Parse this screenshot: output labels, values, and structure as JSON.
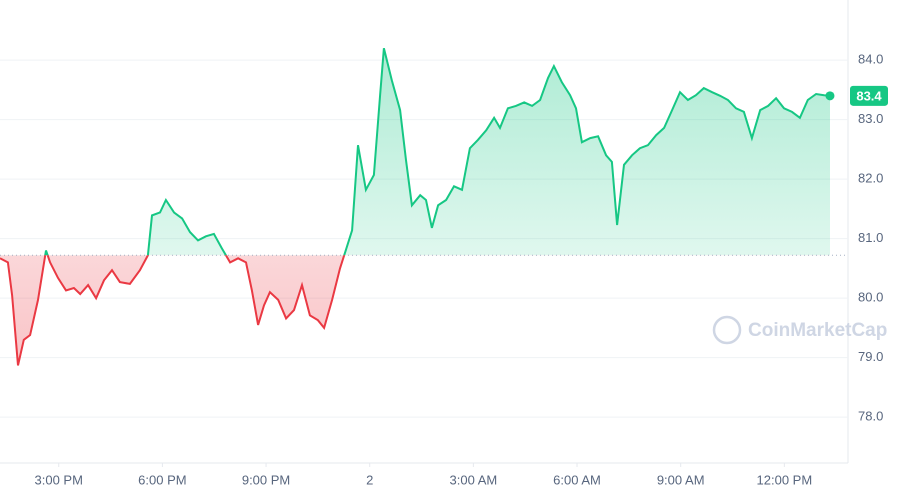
{
  "chart_data": {
    "type": "line",
    "baseline": 80.72,
    "watermark": "CoinMarketCap",
    "last_value_label": "83.4",
    "xlim": [
      13.3,
      37.9
    ],
    "xticks": [
      {
        "value": 15,
        "label": "3:00 PM"
      },
      {
        "value": 18,
        "label": "6:00 PM"
      },
      {
        "value": 21,
        "label": "9:00 PM"
      },
      {
        "value": 24,
        "label": "2"
      },
      {
        "value": 27,
        "label": "3:00 AM"
      },
      {
        "value": 30,
        "label": "6:00 AM"
      },
      {
        "value": 33,
        "label": "9:00 AM"
      },
      {
        "value": 36,
        "label": "12:00 PM"
      }
    ],
    "ylim": [
      77.23,
      85.01
    ],
    "yticks": [
      {
        "value": 78,
        "label": "78.0"
      },
      {
        "value": 79,
        "label": "79.0"
      },
      {
        "value": 80,
        "label": "80.0"
      },
      {
        "value": 81,
        "label": "81.0"
      },
      {
        "value": 82,
        "label": "82.0"
      },
      {
        "value": 83,
        "label": "83.0"
      },
      {
        "value": 84,
        "label": "84.0"
      }
    ],
    "grid": true,
    "up_color": "#16c784",
    "down_color": "#ea3943",
    "x": [
      13.3,
      13.53,
      13.65,
      13.82,
      13.99,
      14.17,
      14.4,
      14.63,
      14.75,
      14.98,
      15.21,
      15.44,
      15.62,
      15.85,
      16.08,
      16.31,
      16.54,
      16.77,
      17.06,
      17.35,
      17.58,
      17.7,
      17.93,
      18.1,
      18.34,
      18.57,
      18.8,
      19.03,
      19.26,
      19.49,
      19.72,
      19.96,
      20.19,
      20.42,
      20.59,
      20.77,
      20.94,
      21.11,
      21.35,
      21.58,
      21.81,
      22.04,
      22.27,
      22.5,
      22.68,
      22.91,
      23.14,
      23.31,
      23.49,
      23.66,
      23.89,
      24.12,
      24.3,
      24.41,
      24.64,
      24.88,
      25.05,
      25.22,
      25.46,
      25.63,
      25.8,
      25.98,
      26.21,
      26.44,
      26.67,
      26.9,
      27.13,
      27.37,
      27.6,
      27.77,
      28.0,
      28.23,
      28.47,
      28.7,
      28.93,
      29.16,
      29.33,
      29.56,
      29.8,
      29.97,
      30.14,
      30.38,
      30.61,
      30.84,
      31.01,
      31.16,
      31.36,
      31.59,
      31.82,
      32.05,
      32.29,
      32.52,
      32.75,
      32.98,
      33.21,
      33.44,
      33.67,
      33.91,
      34.14,
      34.37,
      34.6,
      34.83,
      35.06,
      35.3,
      35.53,
      35.76,
      35.99,
      36.22,
      36.45,
      36.68,
      36.92,
      37.15,
      37.32
    ],
    "values": [
      80.67,
      80.6,
      80.05,
      78.87,
      79.3,
      79.38,
      79.97,
      80.8,
      80.6,
      80.34,
      80.13,
      80.17,
      80.07,
      80.22,
      80.0,
      80.3,
      80.47,
      80.27,
      80.24,
      80.47,
      80.72,
      81.39,
      81.44,
      81.65,
      81.44,
      81.34,
      81.11,
      80.97,
      81.04,
      81.08,
      80.84,
      80.6,
      80.67,
      80.6,
      80.13,
      79.55,
      79.88,
      80.1,
      79.97,
      79.66,
      79.8,
      80.22,
      79.71,
      79.63,
      79.5,
      79.97,
      80.5,
      80.81,
      81.14,
      82.57,
      81.82,
      82.07,
      83.41,
      84.2,
      83.66,
      83.16,
      82.32,
      81.56,
      81.73,
      81.65,
      81.18,
      81.56,
      81.65,
      81.88,
      81.82,
      82.52,
      82.66,
      82.82,
      83.03,
      82.86,
      83.19,
      83.23,
      83.29,
      83.23,
      83.33,
      83.7,
      83.9,
      83.63,
      83.41,
      83.19,
      82.62,
      82.69,
      82.72,
      82.4,
      82.29,
      81.23,
      82.24,
      82.4,
      82.52,
      82.57,
      82.74,
      82.86,
      83.16,
      83.46,
      83.33,
      83.41,
      83.53,
      83.46,
      83.4,
      83.33,
      83.19,
      83.13,
      82.69,
      83.16,
      83.23,
      83.36,
      83.19,
      83.13,
      83.03,
      83.33,
      83.43,
      83.41,
      83.4
    ]
  }
}
